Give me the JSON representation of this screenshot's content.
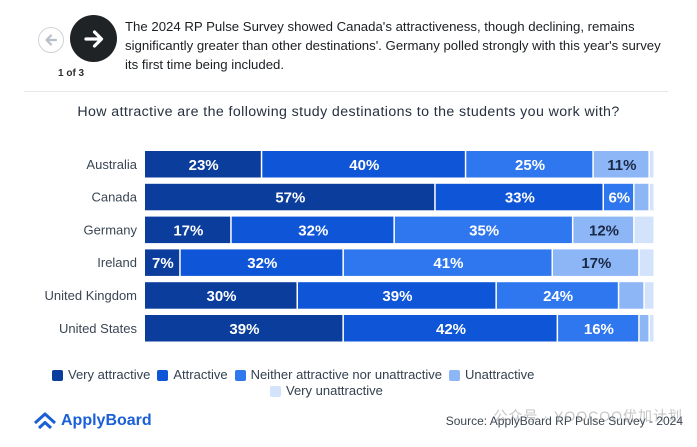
{
  "nav": {
    "prev_icon": "arrow-left-icon",
    "next_icon": "arrow-right-icon",
    "page_indicator": "1 of 3"
  },
  "description": "The 2024 RP Pulse Survey showed Canada's attractiveness, though declining, remains significantly greater than other destinations'. Germany polled strongly with this year's survey its first time being included.",
  "chart_data": {
    "type": "bar",
    "orientation": "horizontal",
    "stacked": true,
    "title": "How attractive are the following study destinations to the students you work with?",
    "categories": [
      "Australia",
      "Canada",
      "Germany",
      "Ireland",
      "United Kingdom",
      "United States"
    ],
    "series": [
      {
        "name": "Very attractive",
        "color": "#0b3d9c",
        "values": [
          23,
          57,
          17,
          7,
          30,
          39
        ]
      },
      {
        "name": "Attractive",
        "color": "#0e55d7",
        "values": [
          40,
          33,
          32,
          32,
          39,
          42
        ]
      },
      {
        "name": "Neither attractive nor unattractive",
        "color": "#2f77ee",
        "values": [
          25,
          6,
          35,
          41,
          24,
          16
        ]
      },
      {
        "name": "Unattractive",
        "color": "#8db6f7",
        "values": [
          11,
          3,
          12,
          17,
          5,
          2
        ]
      },
      {
        "name": "Very unattractive",
        "color": "#d3e3fc",
        "values": [
          1,
          1,
          4,
          3,
          2,
          1
        ]
      }
    ],
    "data_labels": [
      [
        "23%",
        "40%",
        "25%",
        "11%",
        ""
      ],
      [
        "57%",
        "33%",
        "6%",
        "",
        ""
      ],
      [
        "17%",
        "32%",
        "35%",
        "12%",
        ""
      ],
      [
        "7%",
        "32%",
        "41%",
        "17%",
        ""
      ],
      [
        "30%",
        "39%",
        "24%",
        "",
        ""
      ],
      [
        "39%",
        "42%",
        "16%",
        "",
        ""
      ]
    ],
    "xlim": [
      0,
      100
    ],
    "grid": false,
    "legend_position": "bottom-left"
  },
  "legend": {
    "items": [
      {
        "label": "Very attractive",
        "color": "#0b3d9c"
      },
      {
        "label": "Attractive",
        "color": "#0e55d7"
      },
      {
        "label": "Neither attractive nor unattractive",
        "color": "#2f77ee"
      },
      {
        "label": "Unattractive",
        "color": "#8db6f7"
      },
      {
        "label": "Very unattractive",
        "color": "#d3e3fc"
      }
    ]
  },
  "footer": {
    "brand": "ApplyBoard",
    "brand_icon": "applyboard-logo-icon",
    "source": "Source: ApplyBoard RP Pulse Survey - 2024",
    "watermark": "公众号 · YOOCOO优加计划"
  },
  "colors": {
    "accent": "#1a5fd6",
    "nav_dark": "#202326"
  }
}
